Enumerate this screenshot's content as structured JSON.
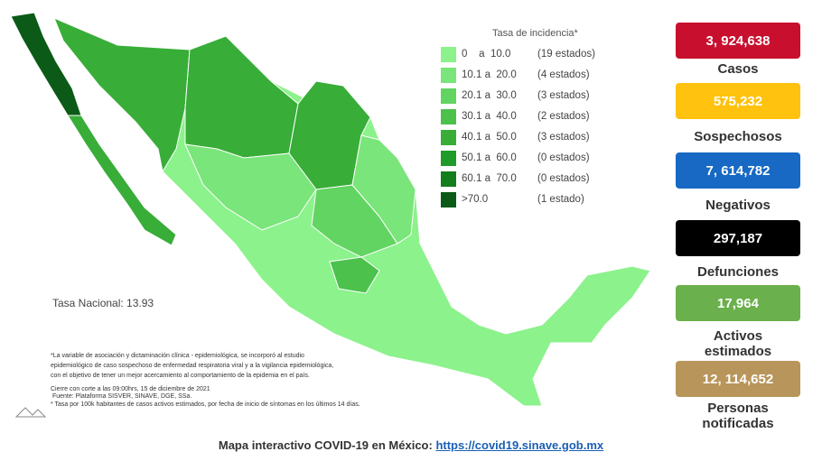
{
  "legend": {
    "title": "Tasa de incidencia*",
    "items": [
      {
        "range": "0    a  10.0",
        "count": "(19 estados)",
        "color": "#8cf28c"
      },
      {
        "range": "10.1 a  20.0",
        "count": "(4 estados)",
        "color": "#7ae57a"
      },
      {
        "range": "20.1 a  30.0",
        "count": "(3 estados)",
        "color": "#62d462"
      },
      {
        "range": "30.1 a  40.0",
        "count": "(2 estados)",
        "color": "#4cc14c"
      },
      {
        "range": "40.1 a  50.0",
        "count": "(3 estados)",
        "color": "#38ad38"
      },
      {
        "range": "50.1 a  60.0",
        "count": "(0 estados)",
        "color": "#209a28"
      },
      {
        "range": "60.1 a  70.0",
        "count": "(0 estados)",
        "color": "#137e1c"
      },
      {
        "range": ">70.0",
        "count": "(1 estado)",
        "color": "#0b5a17"
      }
    ]
  },
  "national_rate": "Tasa Nacional: 13.93",
  "stats": [
    {
      "value": "3, 924,638",
      "label": "Casos",
      "color": "#c8102e"
    },
    {
      "value": "575,232",
      "label": "Sospechosos",
      "color": "#ffc20e"
    },
    {
      "value": "7, 614,782",
      "label": "Negativos",
      "color": "#1769c4"
    },
    {
      "value": "297,187",
      "label": "Defunciones",
      "color": "#000000"
    },
    {
      "value": "17,964",
      "label": "Activos estimados",
      "color": "#6ab04c"
    },
    {
      "value": "12, 114,652",
      "label": "Personas notificadas",
      "color": "#b8955a"
    }
  ],
  "notes": [
    "*La variable de asociación y dictaminación clínica - epidemiológica, se incorporó al estudio",
    "epidemiológico de caso sospechoso de enfermedad respiratoria viral y a la vigilancia epidemiológica,",
    "con el objetivo de tener un mejor acercamiento al comportamiento de la epidemia en el país.",
    "Cierre con corte a las 09:00hrs, 15 de diciembre de 2021",
    " Fuente: Plataforma SISVER, SINAVE, DGE, SSa.",
    "* Tasa por 100k habitantes de casos activos estimados, por fecha de inicio de síntomas en los últimos 14 días."
  ],
  "footer": {
    "text": "Mapa interactivo COVID-19 en México:",
    "link": "https://covid19.sinave.gob.mx"
  }
}
